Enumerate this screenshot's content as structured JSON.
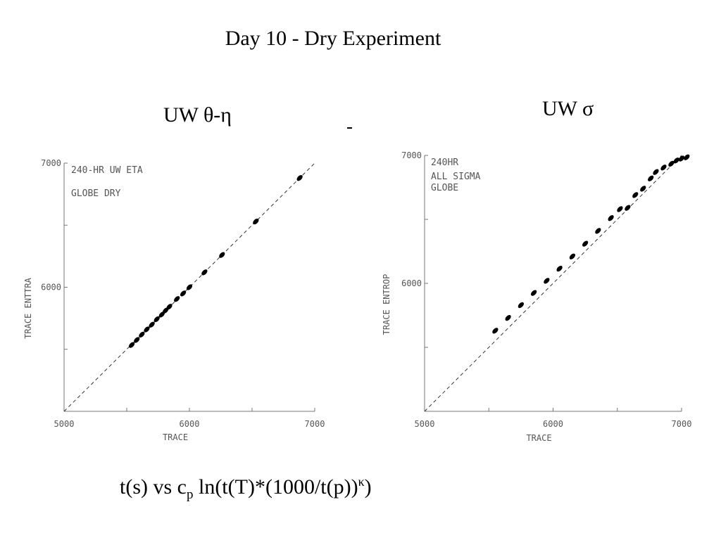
{
  "page": {
    "title": "Day 10 - Dry Experiment",
    "stray_mark": "-",
    "formula": {
      "part1": "t(s)  vs  c",
      "sub": "p",
      "part2": " ln(t(T)*(1000/t(p))",
      "sup": "κ",
      "part3": ")"
    }
  },
  "chart_data": [
    {
      "type": "scatter",
      "panel_title": "UW θ-η",
      "annotation": [
        "240-HR UW ETA",
        "GLOBE DRY"
      ],
      "xlabel": "TRACE",
      "ylabel": "TRACE ENTTRA",
      "xlim": [
        5000,
        7000
      ],
      "ylim": [
        5000,
        7000
      ],
      "x_tick_labels": [
        "5000",
        "6000",
        "7000"
      ],
      "y_tick_labels": [
        "6000",
        "7000"
      ],
      "reference_line": "dashed y = x",
      "series": [
        {
          "x": [
            5540,
            5580,
            5620,
            5660,
            5700,
            5740,
            5780,
            5810,
            5840
          ],
          "y": [
            5535,
            5575,
            5618,
            5660,
            5698,
            5742,
            5780,
            5812,
            5843
          ]
        },
        {
          "x": [
            5900,
            5950,
            6000,
            6120,
            6260,
            6530,
            6880
          ],
          "y": [
            5905,
            5950,
            6000,
            6120,
            6260,
            6530,
            6880
          ]
        }
      ]
    },
    {
      "type": "scatter",
      "panel_title": "UW σ",
      "annotation": [
        "240HR",
        "ALL SIGMA",
        "GLOBE"
      ],
      "xlabel": "TRACE",
      "ylabel": "TRACE ENTROP",
      "xlim": [
        5000,
        7000
      ],
      "ylim": [
        5000,
        7000
      ],
      "x_tick_labels": [
        "5000",
        "6000",
        "7000"
      ],
      "y_tick_labels": [
        "6000",
        "7000"
      ],
      "reference_line": "dashed y = x",
      "series": [
        {
          "x": [
            5550,
            5650,
            5750,
            5850,
            5950,
            6050,
            6150,
            6250,
            6350,
            6450,
            6520,
            6580,
            6640,
            6700,
            6760,
            6800,
            6860,
            6920,
            6960,
            7000,
            7040
          ],
          "y": [
            5630,
            5730,
            5830,
            5925,
            6020,
            6115,
            6210,
            6310,
            6410,
            6510,
            6580,
            6590,
            6690,
            6740,
            6820,
            6870,
            6905,
            6935,
            6960,
            6975,
            6985
          ]
        }
      ]
    }
  ]
}
